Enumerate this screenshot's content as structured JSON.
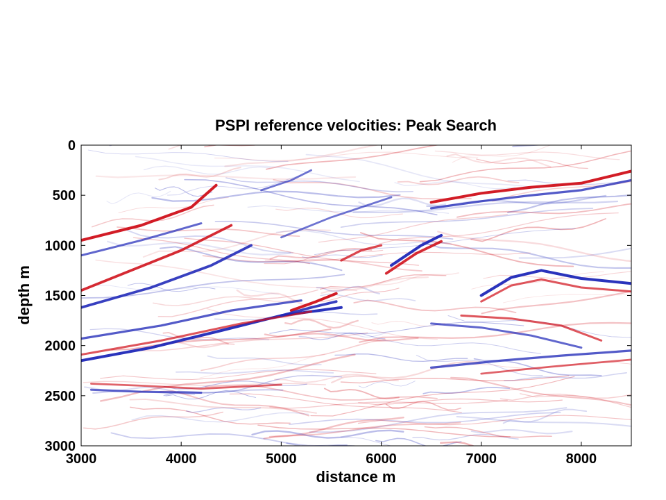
{
  "chart_data": {
    "type": "heatmap",
    "title": "PSPI reference velocities: Peak Search",
    "xlabel": "distance m",
    "ylabel": "depth m",
    "xlim": [
      3000,
      8500
    ],
    "ylim": [
      0,
      3000
    ],
    "y_reversed": true,
    "grid": false,
    "colormap": "blue-white-red",
    "colors": {
      "positive": "#d0101a",
      "negative": "#1f28b8",
      "zero": "#ffffff"
    },
    "x_ticks": [
      3000,
      4000,
      5000,
      6000,
      7000,
      8000
    ],
    "y_ticks": [
      0,
      500,
      1000,
      1500,
      2000,
      2500,
      3000
    ],
    "x_tick_labels": [
      "3000",
      "4000",
      "5000",
      "6000",
      "7000",
      "8000"
    ],
    "y_tick_labels": [
      "0",
      "500",
      "1000",
      "1500",
      "2000",
      "2500",
      "3000"
    ],
    "reflectors": [
      {
        "x": [
          3000,
          3600,
          4100,
          4350
        ],
        "y": [
          950,
          800,
          620,
          400
        ],
        "amplitude": 1.0
      },
      {
        "x": [
          3000,
          3600,
          4200
        ],
        "y": [
          1100,
          950,
          780
        ],
        "amplitude": -0.6
      },
      {
        "x": [
          3000,
          3500,
          4000,
          4500
        ],
        "y": [
          1450,
          1250,
          1050,
          800
        ],
        "amplitude": 0.9
      },
      {
        "x": [
          3000,
          3700,
          4300,
          4700
        ],
        "y": [
          1620,
          1420,
          1200,
          1000
        ],
        "amplitude": -0.9
      },
      {
        "x": [
          3000,
          3800,
          4500,
          5200
        ],
        "y": [
          1930,
          1800,
          1650,
          1550
        ],
        "amplitude": -0.7
      },
      {
        "x": [
          3000,
          3700,
          4400,
          5000,
          5600
        ],
        "y": [
          2150,
          2020,
          1850,
          1700,
          1620
        ],
        "amplitude": -1.0
      },
      {
        "x": [
          3000,
          3800,
          4600,
          5300
        ],
        "y": [
          2090,
          1950,
          1780,
          1660
        ],
        "amplitude": 0.6
      },
      {
        "x": [
          5100,
          5350,
          5550
        ],
        "y": [
          1650,
          1560,
          1480
        ],
        "amplitude": 1.0
      },
      {
        "x": [
          5000,
          5300,
          5550
        ],
        "y": [
          1700,
          1620,
          1560
        ],
        "amplitude": -0.9
      },
      {
        "x": [
          6500,
          7000,
          7500,
          8000,
          8500
        ],
        "y": [
          570,
          480,
          420,
          380,
          260
        ],
        "amplitude": 1.0
      },
      {
        "x": [
          6500,
          7000,
          7500,
          8000,
          8500
        ],
        "y": [
          630,
          560,
          500,
          450,
          350
        ],
        "amplitude": -0.7
      },
      {
        "x": [
          6100,
          6400,
          6600
        ],
        "y": [
          1200,
          1000,
          900
        ],
        "amplitude": -1.0
      },
      {
        "x": [
          6050,
          6350,
          6600
        ],
        "y": [
          1280,
          1080,
          960
        ],
        "amplitude": 0.9
      },
      {
        "x": [
          7000,
          7300,
          7600,
          8000,
          8500
        ],
        "y": [
          1500,
          1320,
          1250,
          1330,
          1380
        ],
        "amplitude": -1.0
      },
      {
        "x": [
          7000,
          7300,
          7600,
          8000,
          8500
        ],
        "y": [
          1560,
          1400,
          1340,
          1420,
          1460
        ],
        "amplitude": 0.6
      },
      {
        "x": [
          6800,
          7300,
          7800,
          8200
        ],
        "y": [
          1700,
          1730,
          1800,
          1950
        ],
        "amplitude": 0.6
      },
      {
        "x": [
          6500,
          7000,
          7500,
          8000
        ],
        "y": [
          1780,
          1820,
          1900,
          2020
        ],
        "amplitude": -0.6
      },
      {
        "x": [
          6500,
          7200,
          7800,
          8500
        ],
        "y": [
          2220,
          2150,
          2100,
          2050
        ],
        "amplitude": -0.7
      },
      {
        "x": [
          7000,
          7700,
          8500
        ],
        "y": [
          2280,
          2210,
          2140
        ],
        "amplitude": 0.5
      },
      {
        "x": [
          3100,
          3600,
          4200,
          5000
        ],
        "y": [
          2380,
          2400,
          2430,
          2390
        ],
        "amplitude": 0.5
      },
      {
        "x": [
          3100,
          3600,
          4200
        ],
        "y": [
          2440,
          2460,
          2470
        ],
        "amplitude": -0.6
      },
      {
        "x": [
          5000,
          5500,
          6100
        ],
        "y": [
          920,
          720,
          520
        ],
        "amplitude": -0.5
      },
      {
        "x": [
          4800,
          5100,
          5300
        ],
        "y": [
          450,
          350,
          250
        ],
        "amplitude": -0.5
      },
      {
        "x": [
          5600,
          5800,
          6000
        ],
        "y": [
          1150,
          1050,
          1000
        ],
        "amplitude": 0.7
      }
    ]
  }
}
